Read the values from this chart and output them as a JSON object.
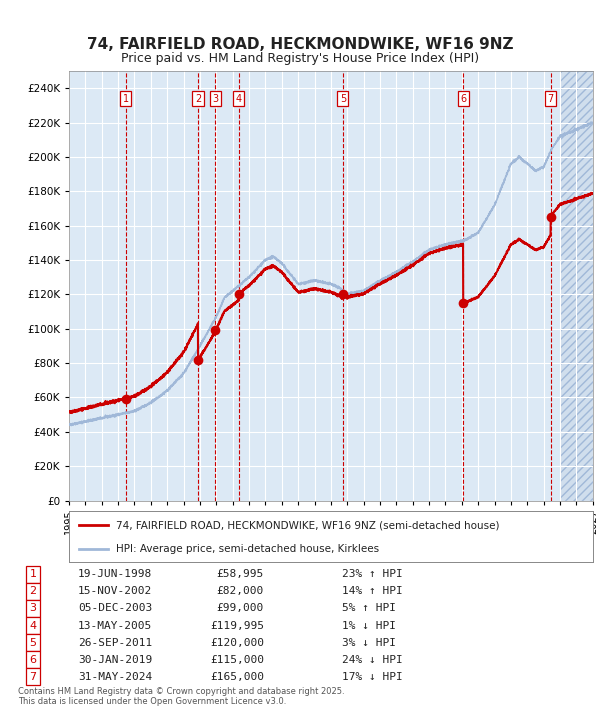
{
  "title": "74, FAIRFIELD ROAD, HECKMONDWIKE, WF16 9NZ",
  "subtitle": "Price paid vs. HM Land Registry's House Price Index (HPI)",
  "title_fontsize": 11,
  "subtitle_fontsize": 9,
  "xlim": [
    1995.0,
    2027.0
  ],
  "ylim": [
    0,
    250000
  ],
  "yticks": [
    0,
    20000,
    40000,
    60000,
    80000,
    100000,
    120000,
    140000,
    160000,
    180000,
    200000,
    220000,
    240000
  ],
  "xticks": [
    1995,
    1996,
    1997,
    1998,
    1999,
    2000,
    2001,
    2002,
    2003,
    2004,
    2005,
    2006,
    2007,
    2008,
    2009,
    2010,
    2011,
    2012,
    2013,
    2014,
    2015,
    2016,
    2017,
    2018,
    2019,
    2020,
    2021,
    2022,
    2023,
    2024,
    2025,
    2026,
    2027
  ],
  "background_color": "#dce9f5",
  "grid_color": "#ffffff",
  "hpi_line_color": "#a0b8d8",
  "price_line_color": "#cc0000",
  "marker_color": "#cc0000",
  "vline_color": "#cc0000",
  "sale_dates_decimal": [
    1998.46,
    2002.88,
    2003.92,
    2005.36,
    2011.73,
    2019.08,
    2024.42
  ],
  "sale_prices": [
    58995,
    82000,
    99000,
    119995,
    120000,
    115000,
    165000
  ],
  "sale_labels": [
    "1",
    "2",
    "3",
    "4",
    "5",
    "6",
    "7"
  ],
  "sale_info": [
    {
      "label": "1",
      "date": "19-JUN-1998",
      "price": "£58,995",
      "pct": "23%",
      "dir": "↑",
      "vs": "HPI"
    },
    {
      "label": "2",
      "date": "15-NOV-2002",
      "price": "£82,000",
      "pct": "14%",
      "dir": "↑",
      "vs": "HPI"
    },
    {
      "label": "3",
      "date": "05-DEC-2003",
      "price": "£99,000",
      "pct": "5%",
      "dir": "↑",
      "vs": "HPI"
    },
    {
      "label": "4",
      "date": "13-MAY-2005",
      "price": "£119,995",
      "pct": "1%",
      "dir": "↓",
      "vs": "HPI"
    },
    {
      "label": "5",
      "date": "26-SEP-2011",
      "price": "£120,000",
      "pct": "3%",
      "dir": "↓",
      "vs": "HPI"
    },
    {
      "label": "6",
      "date": "30-JAN-2019",
      "price": "£115,000",
      "pct": "24%",
      "dir": "↓",
      "vs": "HPI"
    },
    {
      "label": "7",
      "date": "31-MAY-2024",
      "price": "£165,000",
      "pct": "17%",
      "dir": "↓",
      "vs": "HPI"
    }
  ],
  "legend_line1": "74, FAIRFIELD ROAD, HECKMONDWIKE, WF16 9NZ (semi-detached house)",
  "legend_line2": "HPI: Average price, semi-detached house, Kirklees",
  "footnote": "Contains HM Land Registry data © Crown copyright and database right 2025.\nThis data is licensed under the Open Government Licence v3.0."
}
